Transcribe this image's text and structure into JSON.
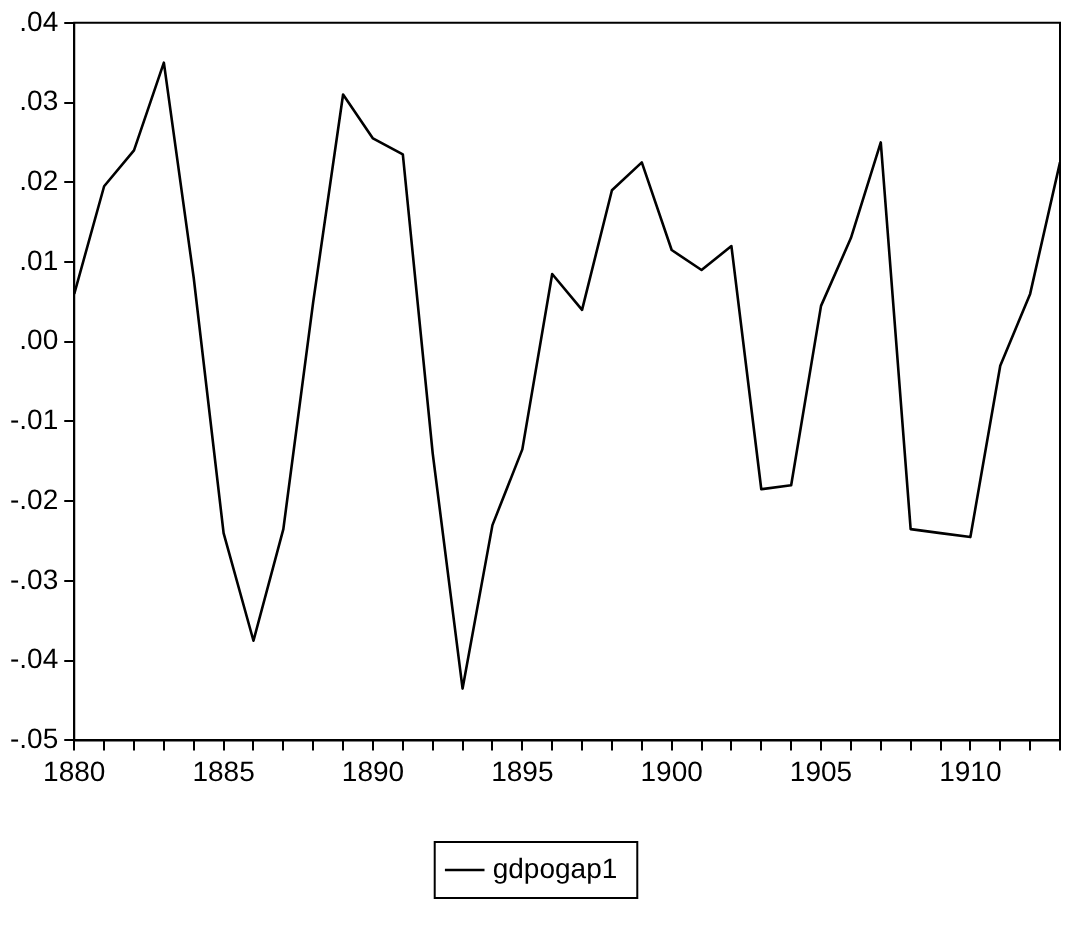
{
  "chart_data": {
    "type": "line",
    "x": [
      1880,
      1881,
      1882,
      1883,
      1884,
      1885,
      1886,
      1887,
      1888,
      1889,
      1890,
      1891,
      1892,
      1893,
      1894,
      1895,
      1896,
      1897,
      1898,
      1899,
      1900,
      1901,
      1902,
      1903,
      1904,
      1905,
      1906,
      1907,
      1908,
      1909,
      1910,
      1911,
      1912,
      1913
    ],
    "series": [
      {
        "name": "gdpogap1",
        "color": "#000000",
        "values": [
          0.006,
          0.0195,
          0.024,
          0.035,
          0.008,
          -0.024,
          -0.0375,
          -0.0235,
          0.005,
          0.031,
          0.0255,
          0.0235,
          -0.014,
          -0.0435,
          -0.023,
          -0.0135,
          0.0085,
          0.004,
          0.019,
          0.0225,
          0.0115,
          0.009,
          0.012,
          -0.0185,
          -0.018,
          0.0045,
          0.013,
          0.025,
          -0.0235,
          -0.024,
          -0.0245,
          -0.003,
          0.006,
          0.0225
        ]
      }
    ],
    "xlim": [
      1880,
      1913
    ],
    "xticks": [
      1880,
      {
        "value": 1881,
        "label": null
      },
      {
        "value": 1882,
        "label": null
      },
      {
        "value": 1883,
        "label": null
      },
      {
        "value": 1884,
        "label": null
      },
      1885,
      {
        "value": 1886,
        "label": null
      },
      {
        "value": 1887,
        "label": null
      },
      {
        "value": 1888,
        "label": null
      },
      {
        "value": 1889,
        "label": null
      },
      1890,
      {
        "value": 1891,
        "label": null
      },
      {
        "value": 1892,
        "label": null
      },
      {
        "value": 1893,
        "label": null
      },
      {
        "value": 1894,
        "label": null
      },
      1895,
      {
        "value": 1896,
        "label": null
      },
      {
        "value": 1897,
        "label": null
      },
      {
        "value": 1898,
        "label": null
      },
      {
        "value": 1899,
        "label": null
      },
      1900,
      {
        "value": 1901,
        "label": null
      },
      {
        "value": 1902,
        "label": null
      },
      {
        "value": 1903,
        "label": null
      },
      {
        "value": 1904,
        "label": null
      },
      1905,
      {
        "value": 1906,
        "label": null
      },
      {
        "value": 1907,
        "label": null
      },
      {
        "value": 1908,
        "label": null
      },
      {
        "value": 1909,
        "label": null
      },
      1910,
      {
        "value": 1911,
        "label": null
      },
      {
        "value": 1912,
        "label": null
      },
      {
        "value": 1913,
        "label": null
      }
    ],
    "ylim": [
      -0.05,
      0.04
    ],
    "yticks": [
      {
        "value": -0.05,
        "label": "-.05"
      },
      {
        "value": -0.04,
        "label": "-.04"
      },
      {
        "value": -0.03,
        "label": "-.03"
      },
      {
        "value": -0.02,
        "label": "-.02"
      },
      {
        "value": -0.01,
        "label": "-.01"
      },
      {
        "value": 0,
        "label": ".00"
      },
      {
        "value": 0.01,
        "label": ".01"
      },
      {
        "value": 0.02,
        "label": ".02"
      },
      {
        "value": 0.03,
        "label": ".03"
      },
      {
        "value": 0.04,
        "label": ".04"
      }
    ],
    "grid": false,
    "legend": "bottom",
    "marker": "none",
    "line_style": "solid"
  }
}
